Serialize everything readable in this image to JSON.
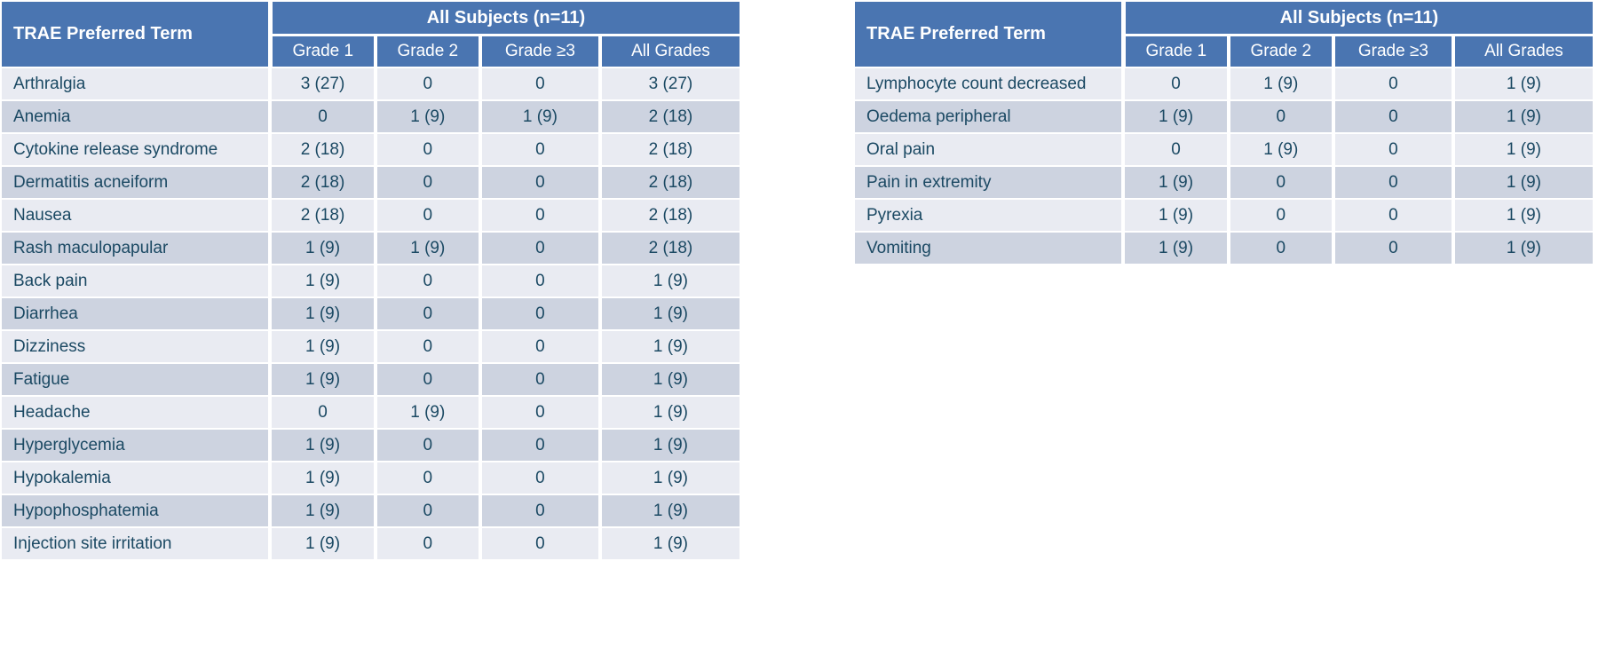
{
  "colors": {
    "header_blue": "#4A75B1",
    "header_text": "#FFFFFF",
    "band_light": "#E9EBF2",
    "band_dark": "#CDD3E0",
    "body_text": "#1B4963",
    "background": "#FFFFFF"
  },
  "tables": [
    {
      "name": "trae-table-left",
      "term_header": "TRAE Preferred Term",
      "group_header": "All Subjects (n=11)",
      "columns": [
        "Grade 1",
        "Grade 2",
        "Grade ≥3",
        "All Grades"
      ],
      "rows": [
        {
          "term": "Arthralgia",
          "values": [
            "3 (27)",
            "0",
            "0",
            "3 (27)"
          ]
        },
        {
          "term": "Anemia",
          "values": [
            "0",
            "1 (9)",
            "1 (9)",
            "2 (18)"
          ]
        },
        {
          "term": "Cytokine release syndrome",
          "values": [
            "2 (18)",
            "0",
            "0",
            "2 (18)"
          ]
        },
        {
          "term": "Dermatitis acneiform",
          "values": [
            "2 (18)",
            "0",
            "0",
            "2 (18)"
          ]
        },
        {
          "term": "Nausea",
          "values": [
            "2 (18)",
            "0",
            "0",
            "2 (18)"
          ]
        },
        {
          "term": "Rash maculopapular",
          "values": [
            "1 (9)",
            "1 (9)",
            "0",
            "2 (18)"
          ]
        },
        {
          "term": "Back pain",
          "values": [
            "1 (9)",
            "0",
            "0",
            "1 (9)"
          ]
        },
        {
          "term": "Diarrhea",
          "values": [
            "1 (9)",
            "0",
            "0",
            "1 (9)"
          ]
        },
        {
          "term": "Dizziness",
          "values": [
            "1 (9)",
            "0",
            "0",
            "1 (9)"
          ]
        },
        {
          "term": "Fatigue",
          "values": [
            "1 (9)",
            "0",
            "0",
            "1 (9)"
          ]
        },
        {
          "term": "Headache",
          "values": [
            "0",
            "1 (9)",
            "0",
            "1 (9)"
          ]
        },
        {
          "term": "Hyperglycemia",
          "values": [
            "1 (9)",
            "0",
            "0",
            "1 (9)"
          ]
        },
        {
          "term": "Hypokalemia",
          "values": [
            "1 (9)",
            "0",
            "0",
            "1 (9)"
          ]
        },
        {
          "term": "Hypophosphatemia",
          "values": [
            "1 (9)",
            "0",
            "0",
            "1 (9)"
          ]
        },
        {
          "term": "Injection site irritation",
          "values": [
            "1 (9)",
            "0",
            "0",
            "1 (9)"
          ]
        }
      ]
    },
    {
      "name": "trae-table-right",
      "term_header": "TRAE Preferred Term",
      "group_header": "All Subjects (n=11)",
      "columns": [
        "Grade 1",
        "Grade 2",
        "Grade ≥3",
        "All Grades"
      ],
      "rows": [
        {
          "term": "Lymphocyte count decreased",
          "values": [
            "0",
            "1 (9)",
            "0",
            "1 (9)"
          ]
        },
        {
          "term": "Oedema peripheral",
          "values": [
            "1 (9)",
            "0",
            "0",
            "1 (9)"
          ]
        },
        {
          "term": "Oral pain",
          "values": [
            "0",
            "1 (9)",
            "0",
            "1 (9)"
          ]
        },
        {
          "term": "Pain in extremity",
          "values": [
            "1 (9)",
            "0",
            "0",
            "1 (9)"
          ]
        },
        {
          "term": "Pyrexia",
          "values": [
            "1 (9)",
            "0",
            "0",
            "1 (9)"
          ]
        },
        {
          "term": "Vomiting",
          "values": [
            "1 (9)",
            "0",
            "0",
            "1 (9)"
          ]
        }
      ]
    }
  ]
}
